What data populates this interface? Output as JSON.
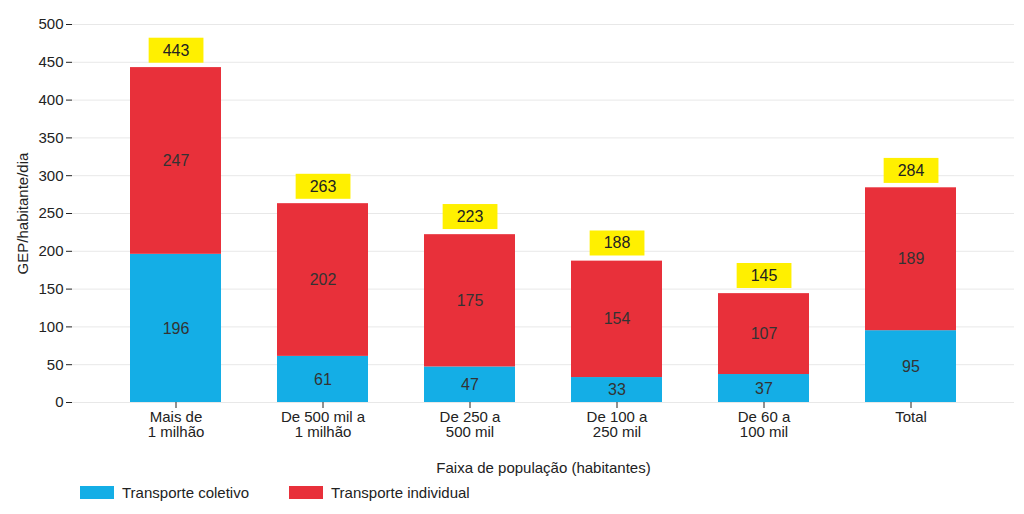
{
  "chart_data": {
    "type": "bar",
    "stacked": true,
    "data_labels": true,
    "grid": true,
    "legend": "bottom-left",
    "xlabel": "Faixa de população (habitantes)",
    "ylabel": "GEP/habitante/dia",
    "categories": [
      "Mais de\n1 milhão",
      "De 500 mil a\n1 milhão",
      "De 250 a\n500 mil",
      "De 100 a\n250 mil",
      "De 60 a\n100 mil",
      "Total"
    ],
    "series": [
      {
        "name": "Transporte coletivo",
        "color": "#14aee6",
        "values": [
          196,
          61,
          47,
          33,
          37,
          95
        ]
      },
      {
        "name": "Transporte individual",
        "color": "#e8303a",
        "values": [
          247,
          202,
          175,
          154,
          107,
          189
        ]
      }
    ],
    "totals": [
      443,
      263,
      223,
      188,
      145,
      284
    ],
    "ylim": [
      0,
      500
    ],
    "yticks": [
      0,
      50,
      100,
      150,
      200,
      250,
      300,
      350,
      400,
      450,
      500
    ]
  }
}
